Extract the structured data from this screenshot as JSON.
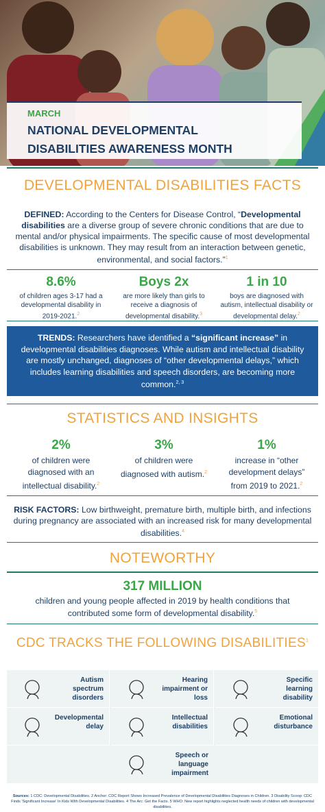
{
  "hero": {
    "month": "MARCH",
    "title_lines": [
      "NATIONAL DEVELOPMENTAL",
      "DISABILITIES AWARENESS MONTH"
    ]
  },
  "facts": {
    "heading": "DEVELOPMENTAL DISABILITIES FACTS",
    "defined": {
      "label": "DEFINED:",
      "text_1": " According to the Centers for Disease Control, “",
      "term": "Developmental disabilities",
      "text_2": " are a diverse group of severe chronic conditions that are due to mental and/or physical impairments. The specific cause of most developmental disabilities is unknown. They may result from an interaction between genetic, environmental, and social factors.”",
      "note": "1"
    },
    "stats": [
      {
        "value": "8.6%",
        "text": "of children ages 3-17 had a developmental disability in 2019-2021.",
        "note": "2"
      },
      {
        "value": "Boys 2x",
        "text": "are more likely than girls to receive a diagnosis of developmental disability.",
        "note": "3"
      },
      {
        "value": "1 in 10",
        "text": "boys are diagnosed with autism, intellectual disability or developmental delay.",
        "note": "2"
      }
    ],
    "trends": {
      "label": "TRENDS:",
      "text_1": " Researchers have identified a ",
      "emphasis": "“significant increase”",
      "text_2": " in developmental disabilities diagnoses. While autism and intellectual disability are mostly unchanged, diagnoses of “other developmental delays,” which includes learning disabilities and speech disorders, are becoming more common.",
      "note": "2, 3"
    }
  },
  "statistics": {
    "heading": "STATISTICS AND INSIGHTS",
    "stats": [
      {
        "value": "2%",
        "text": "of children were diagnosed with an intellectual disability.",
        "note": "2"
      },
      {
        "value": "3%",
        "text": "of children were diagnosed with autism.",
        "note": "2"
      },
      {
        "value": "1%",
        "text": "increase in “other development delays” from 2019 to 2021.",
        "note": "2"
      }
    ],
    "risk": {
      "label": "RISK FACTORS:",
      "text": " Low birthweight, premature birth, multiple birth, and infections during pregnancy are associated with an increased risk for many developmental disabilities.",
      "note": "4"
    }
  },
  "noteworthy": {
    "heading": "NOTEWORTHY",
    "value": "317 MILLION",
    "text": "children and young people affected in 2019 by health conditions that contributed some form of developmental disability.",
    "note": "5"
  },
  "cdc": {
    "heading": "CDC TRACKS THE FOLLOWING DISABILITIES",
    "note": "1",
    "items": [
      "Autism spectrum disorders",
      "Hearing impairment or loss",
      "Specific learning disability",
      "Developmental delay",
      "Intellectual disabilities",
      "Emotional disturbance",
      "Speech or language impairment"
    ]
  },
  "sources": {
    "label": "Sources:",
    "text": " 1 CDC: Developmental Disabilities. 2 Anchor: CDC Report Shows Increased Prevalence of Developmental Disabilities Diagnoses in Children. 3 Disability Scoop: CDC Finds 'Significant Increase' In Kids With Developmental Disabilities. 4 The Arc: Get the Facts. 5 WHO: New report highlights neglected health needs of children with developmental disabilities."
  }
}
